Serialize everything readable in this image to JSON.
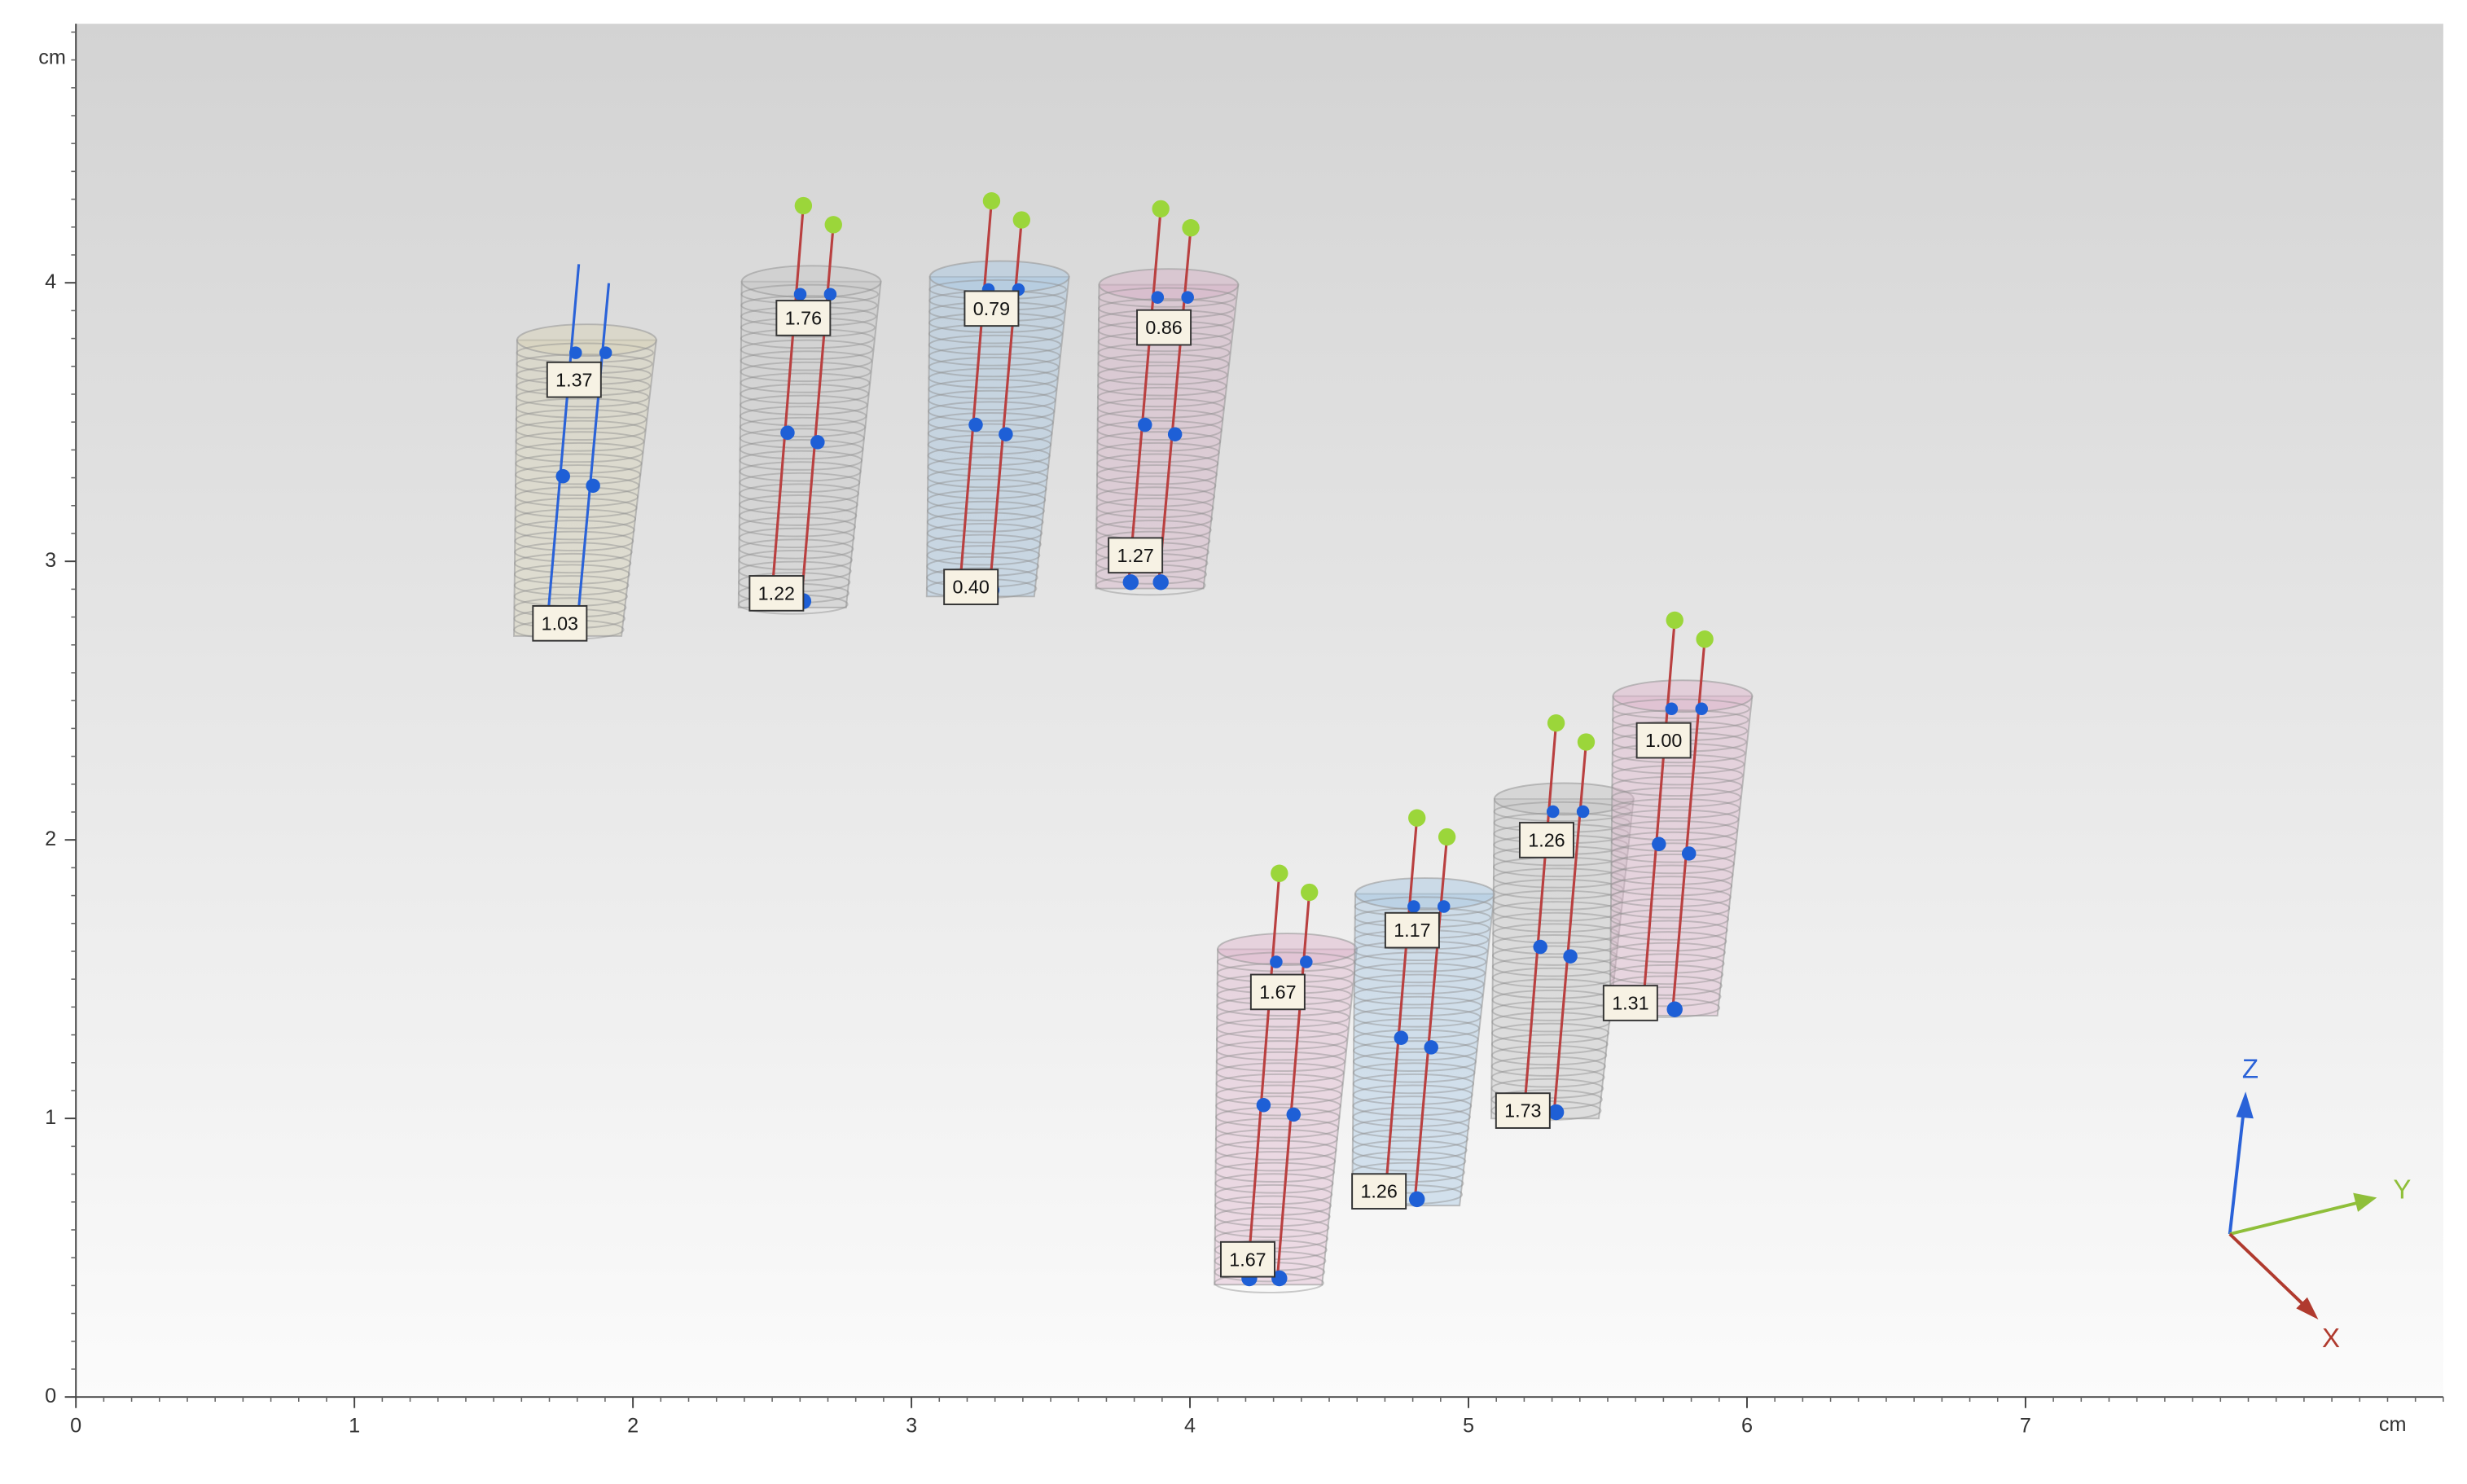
{
  "axes": {
    "x_unit": "cm",
    "y_unit": "cm",
    "xlim": [
      0,
      8.5
    ],
    "ylim": [
      0,
      4.93
    ],
    "xticks": [
      0,
      1,
      2,
      3,
      4,
      5,
      6,
      7
    ],
    "yticks": [
      0,
      1,
      2,
      3,
      4
    ]
  },
  "implants": [
    {
      "top": "1.37",
      "bottom": "1.03"
    },
    {
      "top": "1.76",
      "bottom": "1.22"
    },
    {
      "top": "0.79",
      "bottom": "0.40"
    },
    {
      "top": "0.86",
      "bottom": "1.27"
    },
    {
      "top": "1.67",
      "bottom": "1.67"
    },
    {
      "top": "1.17",
      "bottom": "1.26"
    },
    {
      "top": "1.26",
      "bottom": "1.73"
    },
    {
      "top": "1.00",
      "bottom": "1.31"
    }
  ],
  "triad": {
    "x": "X",
    "y": "Y",
    "z": "Z"
  }
}
